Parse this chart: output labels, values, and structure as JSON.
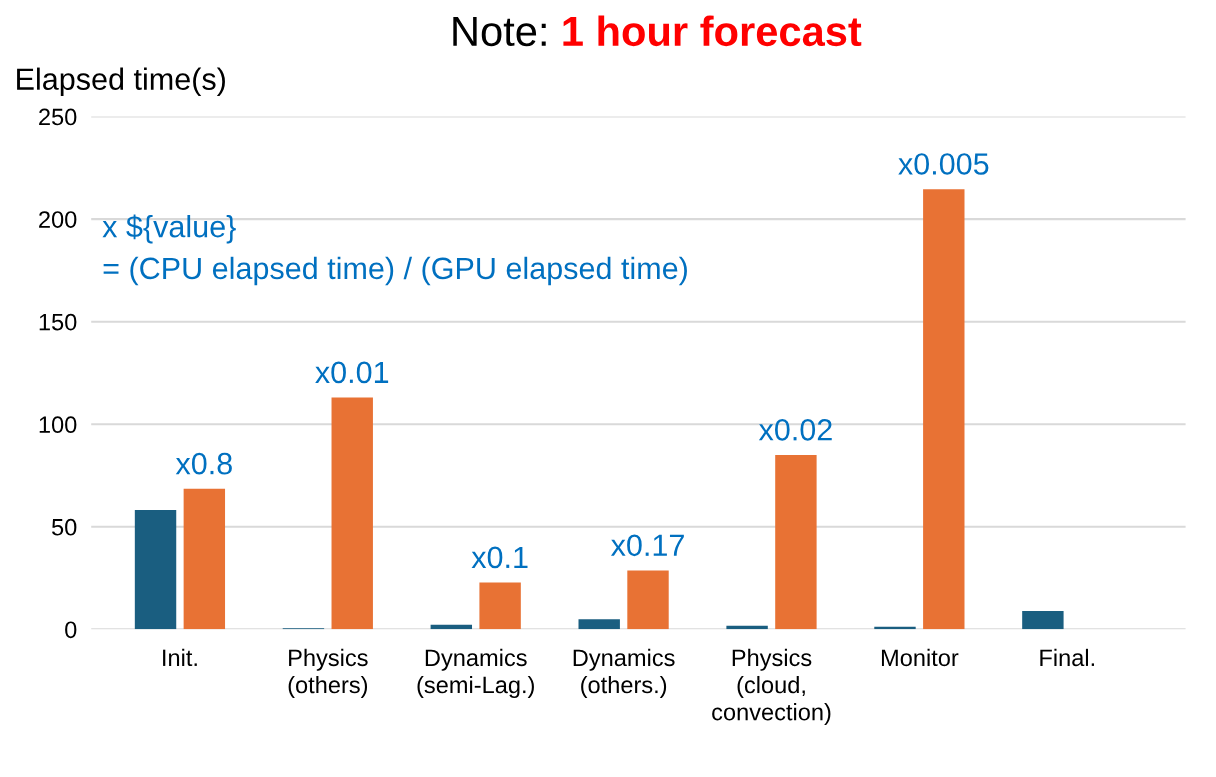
{
  "chart_data": {
    "type": "bar",
    "title": "Note: 1 hour forecast",
    "ylabel": "Elapsed time(s)",
    "categories": [
      "Init.",
      "Physics\n(others)",
      "Dynamics\n(semi-Lag.)",
      "Dynamics\n(others.)",
      "Physics\n(cloud,\nconvection)",
      "Monitor",
      "Final."
    ],
    "series": [
      {
        "color": "#1a5e80",
        "values": [
          58.2,
          0.5,
          2.2,
          4.9,
          1.8,
          1.3,
          9.0
        ]
      },
      {
        "color": "#e87234",
        "values": [
          68.5,
          113,
          22.8,
          28.7,
          85,
          214.6,
          null
        ]
      }
    ],
    "ylim": [
      0,
      250
    ],
    "yticks": [
      0,
      50,
      100,
      150,
      200,
      250
    ],
    "grid": "y",
    "legend": false,
    "annotations": [
      "x ${value}\n= (CPU elapsed time) / (GPU elapsed time)",
      {
        "text": "x0.8",
        "x": "Init.",
        "y": 68.5
      },
      {
        "text": "x0.01",
        "x": "Physics\n(others)",
        "y": 113
      },
      {
        "text": "x0.1",
        "x": "Dynamics\n(semi-Lag.)",
        "y": 22.8
      },
      {
        "text": "x0.17",
        "x": "Dynamics\n(others.)",
        "y": 28.7
      },
      {
        "text": "x0.02",
        "x": "Physics\n(cloud,\nconvection)",
        "y": 85
      },
      {
        "text": "x0.005",
        "x": "Monitor",
        "y": 214.6
      }
    ]
  }
}
